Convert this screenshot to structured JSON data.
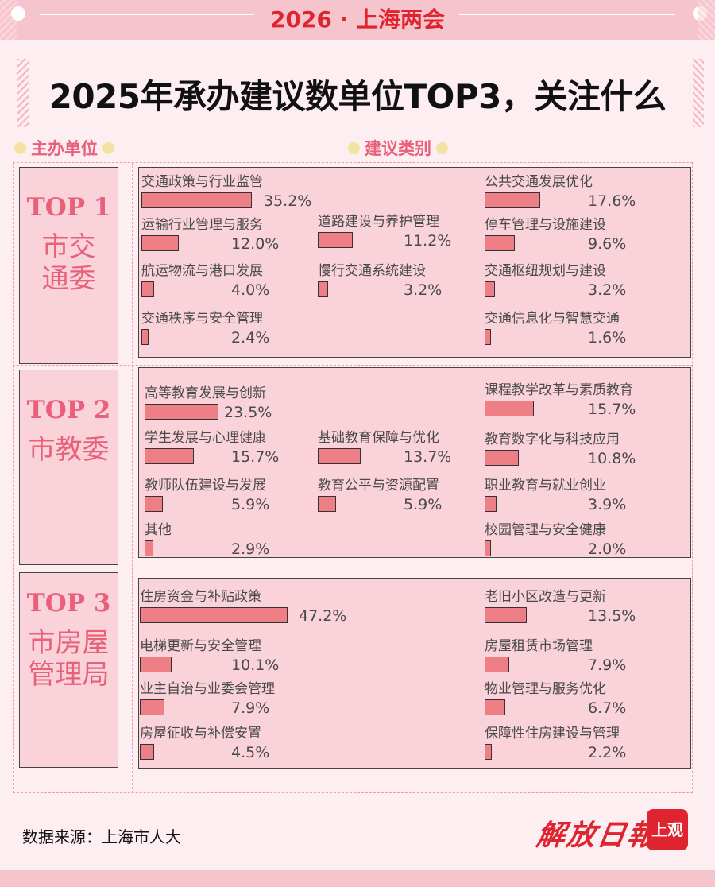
{
  "header": {
    "banner": "2026 · 上海两会"
  },
  "title": "2025年承办建议数单位TOP3，关注什么",
  "columns": {
    "unit": "主办单位",
    "category": "建议类别"
  },
  "footer": {
    "source": "数据来源：上海市人大",
    "logo_text": "解放日报",
    "badge": "上观"
  },
  "colors": {
    "accent": "#e8607a",
    "bar": "#ee7f86",
    "panel": "#f9d2da",
    "banner": "#f6c4cc",
    "brand_red": "#e0242f"
  },
  "chart_data": [
    {
      "type": "bar",
      "rank": "TOP 1",
      "unit": "市交通委",
      "categories": [
        "交通政策与行业监管",
        "公共交通发展优化",
        "运输行业管理与服务",
        "道路建设与养护管理",
        "停车管理与设施建设",
        "航运物流与港口发展",
        "慢行交通系统建设",
        "交通枢纽规划与建设",
        "交通秩序与安全管理",
        "交通信息化与智慧交通"
      ],
      "values": [
        35.2,
        17.6,
        12.0,
        11.2,
        9.6,
        4.0,
        3.2,
        3.2,
        2.4,
        1.6
      ],
      "labels": [
        "35.2%",
        "17.6%",
        "12.0%",
        "11.2%",
        "9.6%",
        "4.0%",
        "3.2%",
        "3.2%",
        "2.4%",
        "1.6%"
      ],
      "unit_of_value": "%"
    },
    {
      "type": "bar",
      "rank": "TOP 2",
      "unit": "市教委",
      "categories": [
        "高等教育发展与创新",
        "课程教学改革与素质教育",
        "学生发展与心理健康",
        "基础教育保障与优化",
        "教育数字化与科技应用",
        "教师队伍建设与发展",
        "教育公平与资源配置",
        "职业教育与就业创业",
        "其他",
        "校园管理与安全健康"
      ],
      "values": [
        23.5,
        15.7,
        15.7,
        13.7,
        10.8,
        5.9,
        5.9,
        3.9,
        2.9,
        2.0
      ],
      "labels": [
        "23.5%",
        "15.7%",
        "15.7%",
        "13.7%",
        "10.8%",
        "5.9%",
        "5.9%",
        "3.9%",
        "2.9%",
        "2.0%"
      ],
      "unit_of_value": "%"
    },
    {
      "type": "bar",
      "rank": "TOP 3",
      "unit": "市房屋管理局",
      "categories": [
        "住房资金与补贴政策",
        "老旧小区改造与更新",
        "电梯更新与安全管理",
        "房屋租赁市场管理",
        "业主自治与业委会管理",
        "物业管理与服务优化",
        "房屋征收与补偿安置",
        "保障性住房建设与管理"
      ],
      "values": [
        47.2,
        13.5,
        10.1,
        7.9,
        7.9,
        6.7,
        4.5,
        2.2
      ],
      "labels": [
        "47.2%",
        "13.5%",
        "10.1%",
        "7.9%",
        "7.9%",
        "6.7%",
        "4.5%",
        "2.2%"
      ],
      "unit_of_value": "%"
    }
  ]
}
